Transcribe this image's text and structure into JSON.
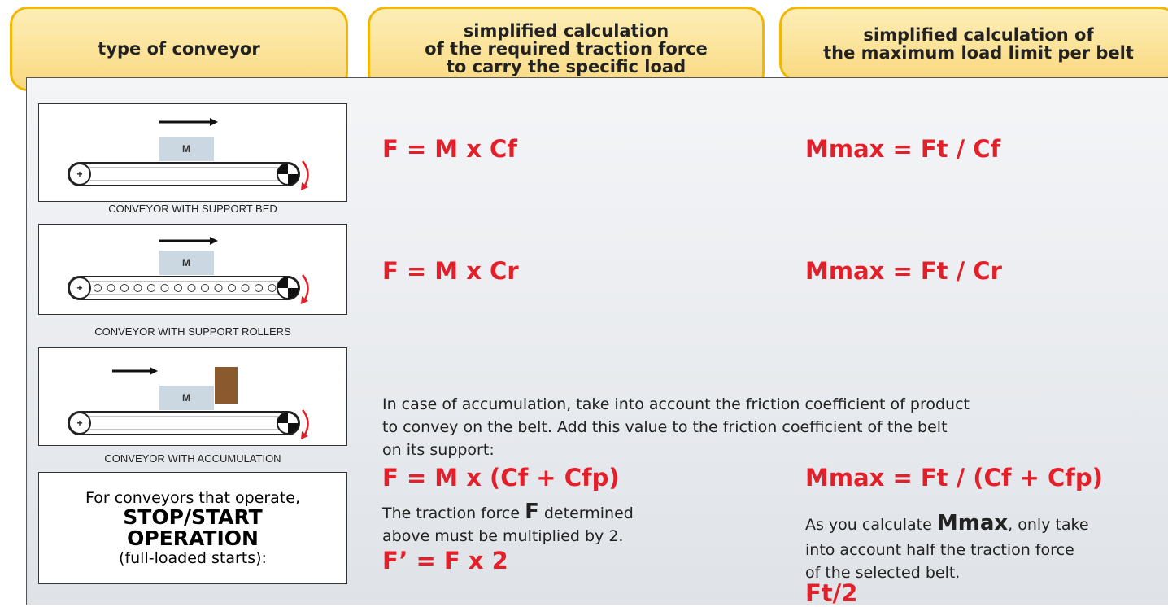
{
  "header": {
    "col1": "type of conveyor",
    "col2": [
      "simplified calculation",
      "of the required traction force",
      "to carry the specific load"
    ],
    "col3": [
      "simplified calculation of",
      "the maximum load limit per belt"
    ]
  },
  "rows": [
    {
      "diagram_label": "M",
      "caption": "CONVEYOR WITH SUPPORT BED",
      "formula_f": "F = M x Cf",
      "formula_m": "Mmax = Ft / Cf"
    },
    {
      "diagram_label": "M",
      "caption": "CONVEYOR WITH SUPPORT ROLLERS",
      "formula_f": "F = M x Cr",
      "formula_m": "Mmax = Ft / Cr"
    },
    {
      "diagram_label": "M",
      "caption": "CONVEYOR WITH ACCUMULATION",
      "note": [
        "In case of accumulation, take into account the friction coefficient of product",
        "to convey on the belt. Add this value to the friction coefficient of the belt",
        "on its support:"
      ],
      "formula_f": "F = M x (Cf + Cfp)",
      "formula_m": "Mmax = Ft / (Cf + Cfp)"
    }
  ],
  "stop_start": {
    "box": [
      "For conveyors that operate,",
      "STOP/START",
      "OPERATION",
      "(full-loaded starts):"
    ],
    "f_note": {
      "before": "The traction force",
      "bold": "F",
      "after": "determined",
      "line2": "above must be multiplied by 2."
    },
    "formula_f": "F’ = F x 2",
    "m_note": {
      "before": "As you calculate",
      "bold": "Mmax",
      "after": ", only take",
      "line2": "into account half the traction force",
      "line3": "of the selected belt."
    },
    "formula_m": "Ft/2"
  }
}
